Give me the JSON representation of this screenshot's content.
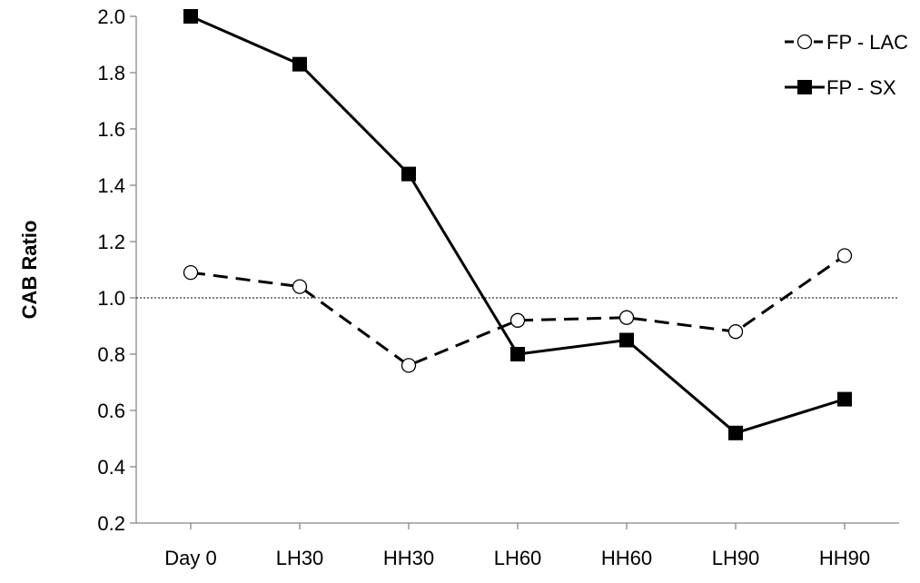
{
  "chart_data": {
    "type": "line",
    "title": "",
    "xlabel": "",
    "ylabel": "CAB Ratio",
    "categories": [
      "Day 0",
      "LH30",
      "HH30",
      "LH60",
      "HH60",
      "LH90",
      "HH90"
    ],
    "ylim": [
      0.2,
      2.0
    ],
    "yticks": [
      0.2,
      0.4,
      0.6,
      0.8,
      1.0,
      1.2,
      1.4,
      1.6,
      1.8,
      2.0
    ],
    "ytick_labels": [
      "0.2",
      "0.4",
      "0.6",
      "0.8",
      "1.0",
      "1.2",
      "1.4",
      "1.6",
      "1.8",
      "2.0"
    ],
    "reference_line": {
      "y": 1.0,
      "style": "dotted"
    },
    "grid": false,
    "legend_position": "top-right",
    "series": [
      {
        "name": "FP - LAC",
        "values": [
          1.09,
          1.04,
          0.76,
          0.92,
          0.93,
          0.88,
          1.15
        ],
        "line_style": "dashed",
        "marker": "open-circle",
        "color": "#000000"
      },
      {
        "name": "FP - SX",
        "values": [
          2.0,
          1.83,
          1.44,
          0.8,
          0.85,
          0.52,
          0.64
        ],
        "line_style": "solid",
        "marker": "filled-square",
        "color": "#000000"
      }
    ]
  }
}
